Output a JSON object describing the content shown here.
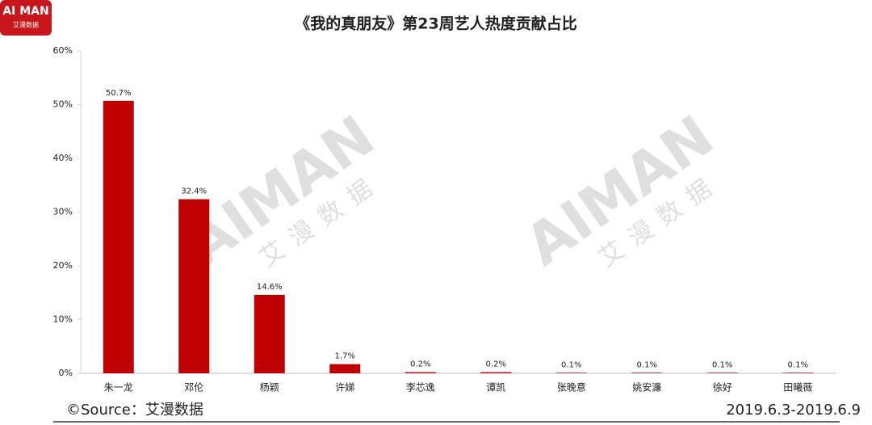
{
  "chart_data": {
    "type": "bar",
    "title": "《我的真朋友》第23周艺人热度贡献占比",
    "logo": "AI MAN",
    "logo_subtitle": "艾漫数据",
    "watermark": "AIMAN",
    "watermark_subtitle": "艾漫数据",
    "source": "©Source：艾漫数据",
    "date_range": "2019.6.3-2019.6.9",
    "categories": [
      "朱一龙",
      "邓伦",
      "杨颖",
      "许娣",
      "李芯逸",
      "谭凯",
      "张晚意",
      "姚安濂",
      "徐好",
      "田曦薇"
    ],
    "values": [
      50.7,
      32.4,
      14.6,
      1.7,
      0.2,
      0.2,
      0.1,
      0.1,
      0.1,
      0.1
    ],
    "value_labels": [
      "50.7%",
      "32.4%",
      "14.6%",
      "1.7%",
      "0.2%",
      "0.2%",
      "0.1%",
      "0.1%",
      "0.1%",
      "0.1%"
    ],
    "color": "#c00000",
    "ylim": [
      0,
      60
    ],
    "yticks": [
      {
        "value": 0,
        "label": "0%"
      },
      {
        "value": 10,
        "label": "10%"
      },
      {
        "value": 20,
        "label": "20%"
      },
      {
        "value": 30,
        "label": "30%"
      },
      {
        "value": 40,
        "label": "40%"
      },
      {
        "value": 50,
        "label": "50%"
      },
      {
        "value": 60,
        "label": "60%"
      }
    ]
  }
}
